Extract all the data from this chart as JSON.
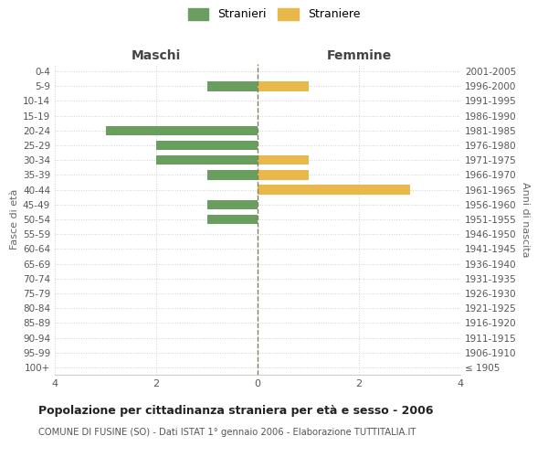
{
  "age_groups": [
    "100+",
    "95-99",
    "90-94",
    "85-89",
    "80-84",
    "75-79",
    "70-74",
    "65-69",
    "60-64",
    "55-59",
    "50-54",
    "45-49",
    "40-44",
    "35-39",
    "30-34",
    "25-29",
    "20-24",
    "15-19",
    "10-14",
    "5-9",
    "0-4"
  ],
  "birth_years": [
    "≤ 1905",
    "1906-1910",
    "1911-1915",
    "1916-1920",
    "1921-1925",
    "1926-1930",
    "1931-1935",
    "1936-1940",
    "1941-1945",
    "1946-1950",
    "1951-1955",
    "1956-1960",
    "1961-1965",
    "1966-1970",
    "1971-1975",
    "1976-1980",
    "1981-1985",
    "1986-1990",
    "1991-1995",
    "1996-2000",
    "2001-2005"
  ],
  "maschi": [
    0,
    0,
    0,
    0,
    0,
    0,
    0,
    0,
    0,
    0,
    1,
    1,
    0,
    1,
    2,
    2,
    3,
    0,
    0,
    1,
    0
  ],
  "femmine": [
    0,
    0,
    0,
    0,
    0,
    0,
    0,
    0,
    0,
    0,
    0,
    0,
    3,
    1,
    1,
    0,
    0,
    0,
    0,
    1,
    0
  ],
  "color_maschi": "#6a9e5e",
  "color_femmine": "#e8b84b",
  "title": "Popolazione per cittadinanza straniera per età e sesso - 2006",
  "subtitle": "COMUNE DI FUSINE (SO) - Dati ISTAT 1° gennaio 2006 - Elaborazione TUTTITALIA.IT",
  "xlabel_maschi": "Maschi",
  "xlabel_femmine": "Femmine",
  "ylabel_left": "Fasce di età",
  "ylabel_right": "Anni di nascita",
  "legend_maschi": "Stranieri",
  "legend_femmine": "Straniere",
  "xlim": 4,
  "background_color": "#ffffff",
  "grid_color": "#d0d0d0",
  "spine_color": "#cccccc"
}
